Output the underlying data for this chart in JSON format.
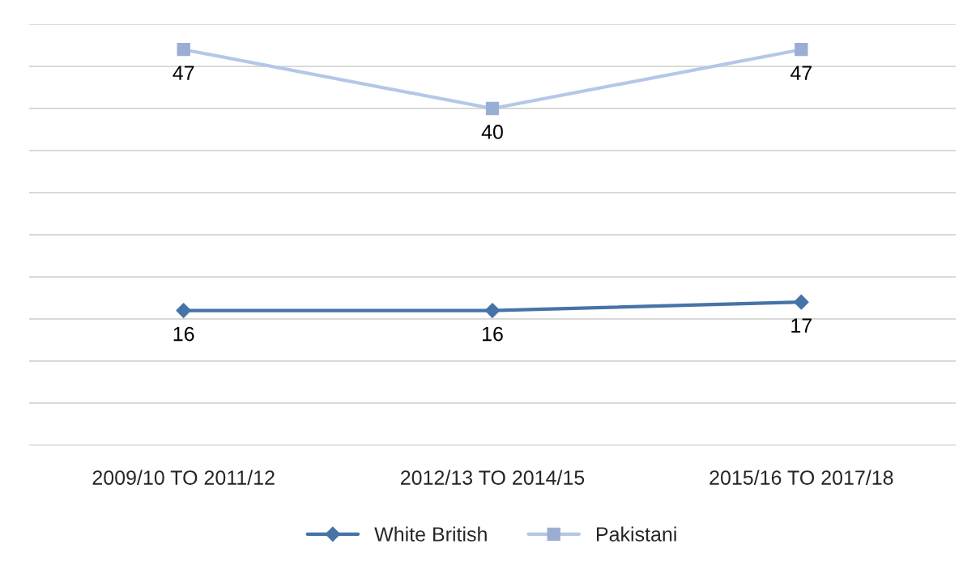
{
  "chart_data": {
    "type": "line",
    "categories": [
      "2009/10 TO 2011/12",
      "2012/13 TO 2014/15",
      "2015/16 TO 2017/18"
    ],
    "series": [
      {
        "name": "White British",
        "color": "#4673a8",
        "values": [
          16,
          16,
          17
        ],
        "marker": "diamond"
      },
      {
        "name": "Pakistani",
        "color": "#b4c7e7",
        "values": [
          47,
          40,
          47
        ],
        "marker": "square"
      }
    ],
    "ylim": [
      0,
      50
    ],
    "yticks": [
      {
        "value": 0,
        "label": null
      },
      {
        "value": 5,
        "label": null
      },
      {
        "value": 10,
        "label": null
      },
      {
        "value": 15,
        "label": null
      },
      {
        "value": 20,
        "label": null
      },
      {
        "value": 25,
        "label": null
      },
      {
        "value": 30,
        "label": null
      },
      {
        "value": 35,
        "label": null
      },
      {
        "value": 40,
        "label": null
      },
      {
        "value": 45,
        "label": null
      },
      {
        "value": 50,
        "label": null
      }
    ],
    "grid": "y",
    "legend": "bottom",
    "data_labels": true,
    "tick_labels": "x",
    "line_style": "solid"
  }
}
